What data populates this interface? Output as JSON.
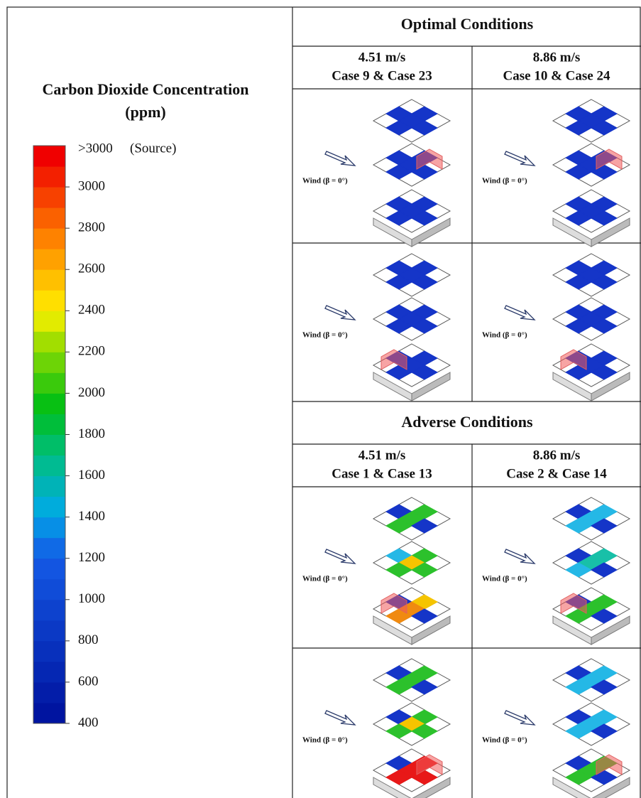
{
  "legend": {
    "title": "Carbon Dioxide Concentration",
    "unit": "(ppm)",
    "top_label": ">3000",
    "source_label": "(Source)",
    "ticks": [
      3000,
      2800,
      2600,
      2400,
      2200,
      2000,
      1800,
      1600,
      1400,
      1200,
      1000,
      800,
      600,
      400
    ]
  },
  "optimal": {
    "title": "Optimal Conditions",
    "columns": [
      {
        "speed": "4.51 m/s",
        "cases": "Case 9 & Case 23"
      },
      {
        "speed": "8.86 m/s",
        "cases": "Case 10 & Case 24"
      }
    ],
    "panels": [
      {
        "wind_label": "Wind (β = 0°)"
      },
      {
        "wind_label": "Wind (β = 0°)"
      },
      {
        "wind_label": "Wind (β = 0°)"
      },
      {
        "wind_label": "Wind (β = 0°)"
      }
    ]
  },
  "adverse": {
    "title": "Adverse Conditions",
    "columns": [
      {
        "speed": "4.51 m/s",
        "cases": "Case 1 & Case 13"
      },
      {
        "speed": "8.86 m/s",
        "cases": "Case 2 & Case 14"
      }
    ],
    "panels": [
      {
        "wind_label": "Wind (β = 0°)"
      },
      {
        "wind_label": "Wind (β = 0°)"
      },
      {
        "wind_label": "Wind (β = 0°)"
      },
      {
        "wind_label": "Wind (β = 0°)"
      }
    ]
  }
}
